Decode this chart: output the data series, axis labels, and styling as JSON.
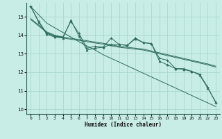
{
  "xlabel": "Humidex (Indice chaleur)",
  "background_color": "#c8ece6",
  "grid_color": "#a8d8d0",
  "line_color": "#2e6b5e",
  "xlim": [
    -0.5,
    23.5
  ],
  "ylim": [
    9.75,
    15.75
  ],
  "yticks": [
    10,
    11,
    12,
    13,
    14,
    15
  ],
  "xticks": [
    0,
    1,
    2,
    3,
    4,
    5,
    6,
    7,
    8,
    9,
    10,
    11,
    12,
    13,
    14,
    15,
    16,
    17,
    18,
    19,
    20,
    21,
    22,
    23
  ],
  "series": {
    "line_jagged_plus": [
      15.55,
      14.75,
      14.1,
      13.95,
      13.9,
      14.75,
      14.1,
      13.3,
      13.4,
      13.35,
      13.85,
      13.5,
      13.45,
      13.85,
      13.6,
      13.55,
      12.75,
      12.65,
      12.2,
      12.2,
      12.05,
      11.9,
      11.2,
      10.35
    ],
    "line_jagged_tri": [
      15.55,
      14.7,
      14.05,
      13.9,
      13.85,
      14.8,
      13.95,
      13.2,
      13.3,
      13.35,
      13.5,
      13.5,
      13.45,
      13.8,
      13.6,
      13.55,
      12.6,
      12.4,
      12.2,
      12.15,
      12.05,
      11.85,
      11.15,
      10.4
    ],
    "line_trend1": [
      14.85,
      14.5,
      14.15,
      13.95,
      13.85,
      13.78,
      13.72,
      13.65,
      13.58,
      13.52,
      13.43,
      13.35,
      13.3,
      13.25,
      13.2,
      13.1,
      13.0,
      12.9,
      12.8,
      12.7,
      12.6,
      12.5,
      12.4,
      12.28
    ],
    "line_trend2": [
      14.9,
      14.55,
      14.18,
      14.0,
      13.9,
      13.83,
      13.77,
      13.7,
      13.63,
      13.57,
      13.48,
      13.4,
      13.35,
      13.3,
      13.25,
      13.15,
      13.05,
      12.95,
      12.85,
      12.75,
      12.65,
      12.55,
      12.45,
      12.33
    ],
    "line_diag_low": [
      15.55,
      15.1,
      14.65,
      14.4,
      14.15,
      13.9,
      13.65,
      13.42,
      13.2,
      12.95,
      12.75,
      12.55,
      12.35,
      12.15,
      11.95,
      11.75,
      11.55,
      11.35,
      11.15,
      10.95,
      10.75,
      10.55,
      10.35,
      10.15
    ]
  }
}
